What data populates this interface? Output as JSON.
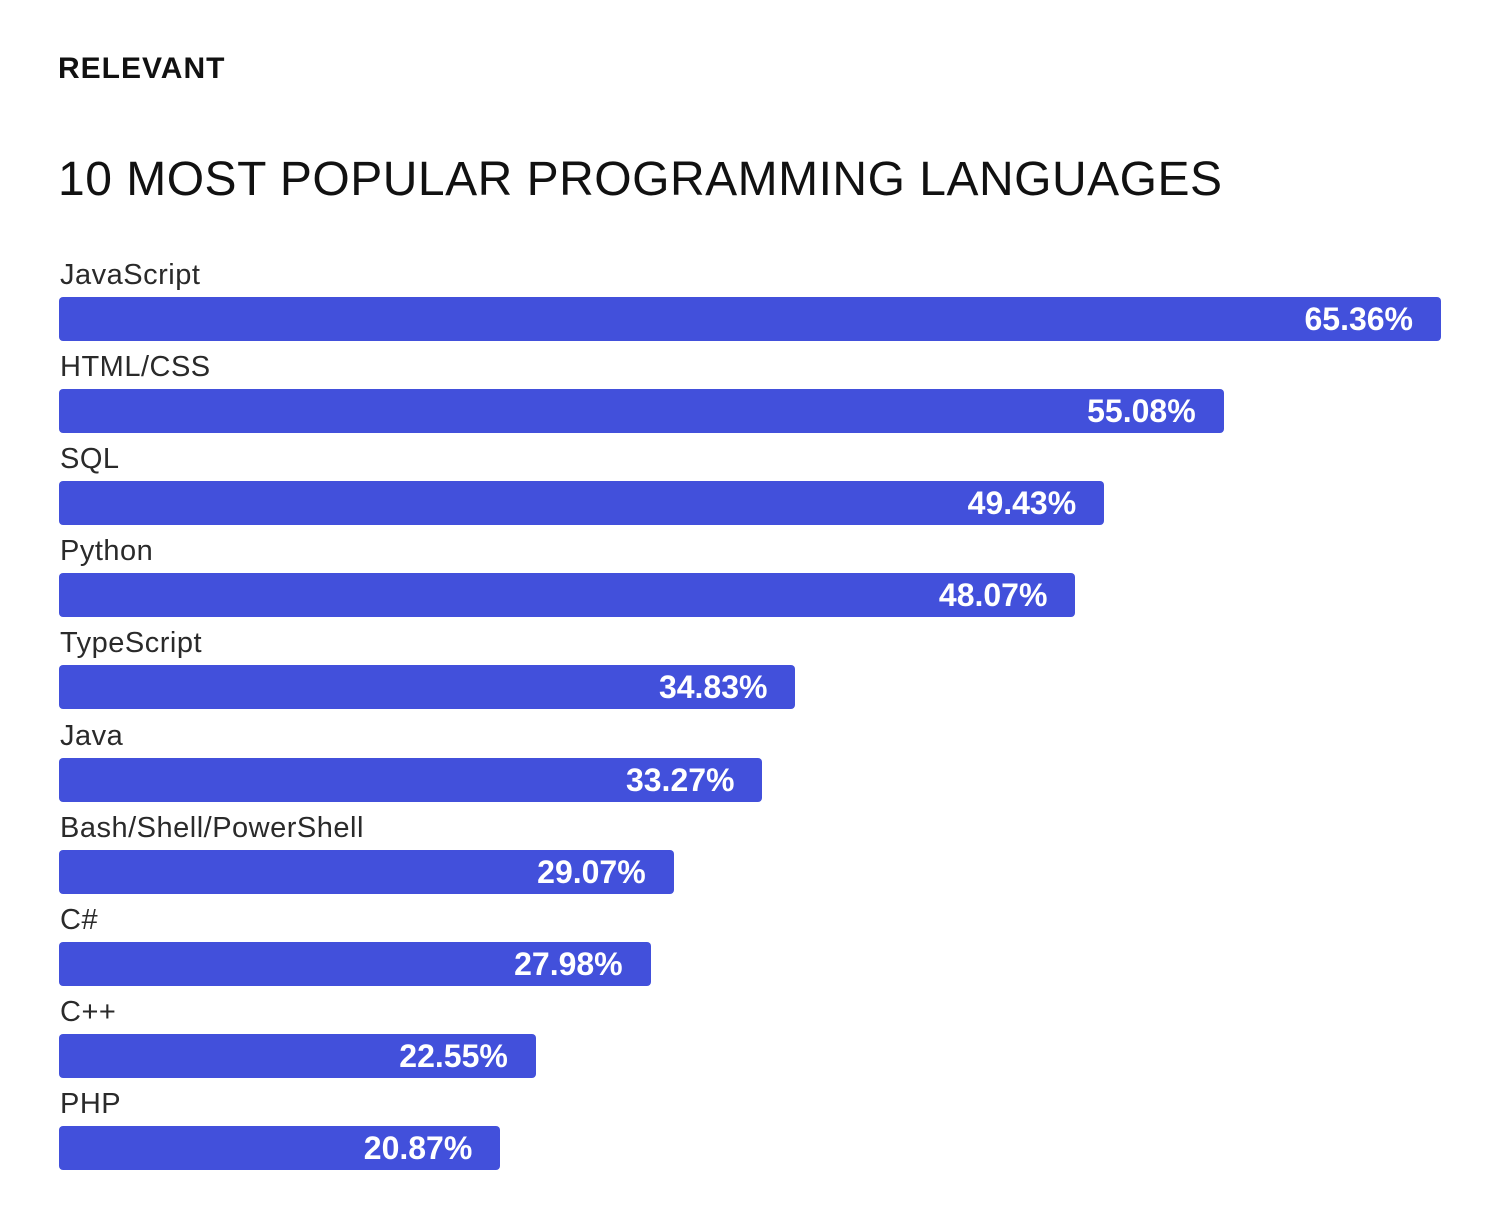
{
  "logo": "RELEVANT",
  "chart_data": {
    "type": "bar",
    "orientation": "horizontal",
    "title": "10 MOST POPULAR PROGRAMMING LANGUAGES",
    "categories": [
      "JavaScript",
      "HTML/CSS",
      "SQL",
      "Python",
      "TypeScript",
      "Java",
      "Bash/Shell/PowerShell",
      "C#",
      "C++",
      "PHP"
    ],
    "values": [
      65.36,
      55.08,
      49.43,
      48.07,
      34.83,
      33.27,
      29.07,
      27.98,
      22.55,
      20.87
    ],
    "value_labels": [
      "65.36%",
      "55.08%",
      "49.43%",
      "48.07%",
      "34.83%",
      "33.27%",
      "29.07%",
      "27.98%",
      "22.55%",
      "20.87%"
    ],
    "unit": "%",
    "grid": false,
    "bar_color": "#4250DB"
  }
}
